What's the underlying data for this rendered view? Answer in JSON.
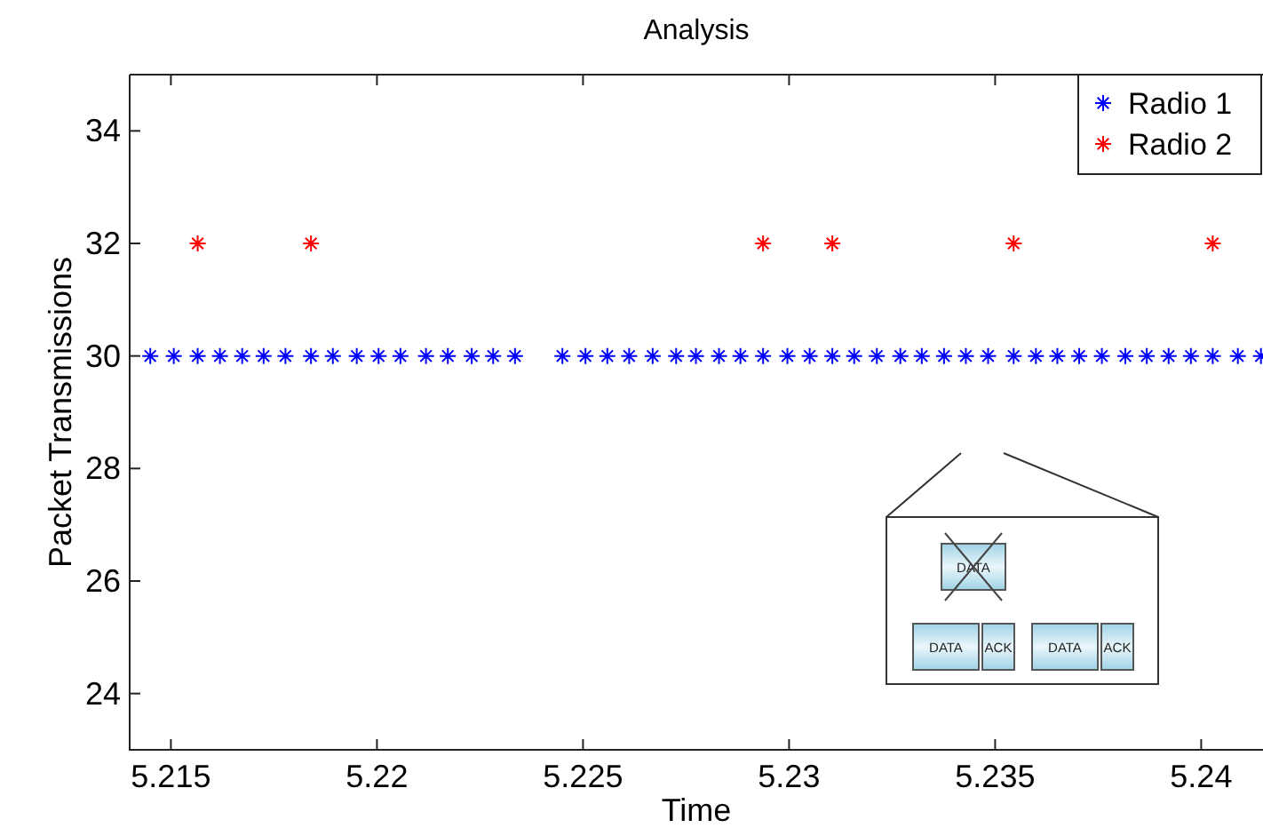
{
  "chart_data": {
    "type": "scatter",
    "title": "Analysis",
    "xlabel": "Time",
    "ylabel": "Packet Transmissions",
    "xlim": [
      5.214,
      5.2415
    ],
    "ylim": [
      23,
      35
    ],
    "xticks": [
      5.215,
      5.22,
      5.225,
      5.23,
      5.235,
      5.24
    ],
    "yticks": [
      24,
      26,
      28,
      30,
      32,
      34
    ],
    "marker": "cross",
    "legend": "top right",
    "grid": false,
    "annotations": [
      "DATA",
      "DATA",
      "ACK",
      "DATA",
      "ACK"
    ],
    "series": [
      {
        "name": "Radio 1",
        "color": "#0000ff",
        "x": [
          5.2145,
          5.21507,
          5.21565,
          5.21619,
          5.21673,
          5.21725,
          5.21778,
          5.2184,
          5.21893,
          5.21951,
          5.22004,
          5.22057,
          5.22119,
          5.22172,
          5.2223,
          5.22282,
          5.22335,
          5.2245,
          5.22506,
          5.22559,
          5.22612,
          5.22669,
          5.22726,
          5.22774,
          5.2283,
          5.22882,
          5.22937,
          5.22996,
          5.2305,
          5.23105,
          5.23158,
          5.23213,
          5.2327,
          5.23322,
          5.23376,
          5.23429,
          5.23483,
          5.23545,
          5.23599,
          5.23651,
          5.23704,
          5.23759,
          5.23816,
          5.23868,
          5.23921,
          5.23975,
          5.24028,
          5.24089,
          5.24145
        ],
        "values": [
          30,
          30,
          30,
          30,
          30,
          30,
          30,
          30,
          30,
          30,
          30,
          30,
          30,
          30,
          30,
          30,
          30,
          30,
          30,
          30,
          30,
          30,
          30,
          30,
          30,
          30,
          30,
          30,
          30,
          30,
          30,
          30,
          30,
          30,
          30,
          30,
          30,
          30,
          30,
          30,
          30,
          30,
          30,
          30,
          30,
          30,
          30,
          30,
          30
        ]
      },
      {
        "name": "Radio 2",
        "color": "#ff0000",
        "x": [
          5.21565,
          5.2184,
          5.22937,
          5.23105,
          5.23545,
          5.24028
        ],
        "values": [
          32,
          32,
          32,
          32,
          32,
          32
        ]
      }
    ]
  }
}
